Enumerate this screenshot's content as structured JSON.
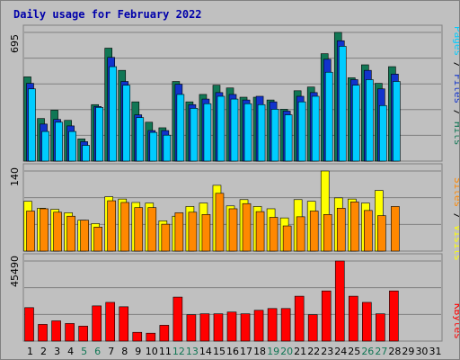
{
  "title": "Daily usage for February 2022",
  "colors": {
    "title": "#0000aa",
    "hits": "#117755",
    "files": "#1133cc",
    "pages": "#00ccff",
    "visits": "#ffff00",
    "sites": "#ff8800",
    "kbytes": "#ff0000",
    "weekend": "#117755",
    "panel": "#c0c0c0",
    "grid": "#808080"
  },
  "chart_data": [
    {
      "type": "bar",
      "panel": "hits",
      "ymax_label": "695",
      "ylim": [
        0,
        695
      ],
      "right_label": [
        {
          "text": "Pages",
          "color": "#00ccff"
        },
        {
          "text": " / ",
          "color": "#000000"
        },
        {
          "text": "Files",
          "color": "#1133cc"
        },
        {
          "text": " / ",
          "color": "#000000"
        },
        {
          "text": "Hits",
          "color": "#117755"
        }
      ],
      "categories": [
        "1",
        "2",
        "3",
        "4",
        "5",
        "6",
        "7",
        "8",
        "9",
        "10",
        "11",
        "12",
        "13",
        "14",
        "15",
        "16",
        "17",
        "18",
        "19",
        "20",
        "21",
        "22",
        "23",
        "24",
        "25",
        "26",
        "27",
        "28",
        "29",
        "30",
        "31"
      ],
      "series": [
        {
          "name": "Hits",
          "values": [
            455,
            230,
            275,
            220,
            120,
            305,
            610,
            490,
            320,
            210,
            180,
            430,
            320,
            360,
            410,
            395,
            345,
            345,
            330,
            280,
            380,
            400,
            580,
            695,
            450,
            520,
            420,
            510,
            null,
            null,
            null
          ]
        },
        {
          "name": "Files",
          "values": [
            420,
            200,
            225,
            190,
            105,
            295,
            560,
            430,
            250,
            165,
            165,
            415,
            305,
            335,
            370,
            360,
            330,
            350,
            320,
            270,
            350,
            370,
            550,
            650,
            440,
            490,
            390,
            470,
            null,
            null,
            null
          ]
        },
        {
          "name": "Pages",
          "values": [
            390,
            160,
            210,
            160,
            85,
            290,
            510,
            410,
            235,
            155,
            140,
            360,
            285,
            310,
            350,
            335,
            310,
            305,
            280,
            250,
            320,
            350,
            480,
            620,
            410,
            440,
            300,
            430,
            null,
            null,
            null
          ]
        }
      ]
    },
    {
      "type": "bar",
      "panel": "visits",
      "ymax_label": "140",
      "ylim": [
        0,
        140
      ],
      "right_label": [
        {
          "text": "Sites",
          "color": "#ff8800"
        },
        {
          "text": " / ",
          "color": "#000000"
        },
        {
          "text": "Visits",
          "color": "#ffff00"
        }
      ],
      "series": [
        {
          "name": "Visits",
          "values": [
            87,
            75,
            73,
            67,
            54,
            48,
            95,
            91,
            85,
            84,
            53,
            61,
            78,
            84,
            115,
            79,
            90,
            78,
            74,
            58,
            90,
            87,
            140,
            93,
            91,
            84,
            106,
            null,
            null,
            null,
            null
          ]
        },
        {
          "name": "Sites",
          "values": [
            70,
            74,
            68,
            61,
            54,
            42,
            88,
            85,
            76,
            76,
            47,
            67,
            68,
            64,
            101,
            74,
            83,
            69,
            59,
            44,
            60,
            70,
            64,
            75,
            86,
            71,
            62,
            78,
            null,
            null,
            null
          ]
        }
      ]
    },
    {
      "type": "bar",
      "panel": "kbytes",
      "ymax_label": "45490",
      "ylim": [
        0,
        45490
      ],
      "right_label": [
        {
          "text": "KBytes",
          "color": "#ff0000"
        }
      ],
      "series": [
        {
          "name": "KBytes",
          "values": [
            19000,
            9500,
            11500,
            10000,
            8500,
            20000,
            22000,
            19500,
            5000,
            4500,
            9000,
            25000,
            15000,
            15500,
            15500,
            16500,
            15500,
            17500,
            18500,
            18500,
            25500,
            15000,
            28500,
            45490,
            25500,
            22000,
            15500,
            28500,
            null,
            null,
            null
          ]
        }
      ]
    }
  ],
  "xaxis": {
    "labels": [
      "1",
      "2",
      "3",
      "4",
      "5",
      "6",
      "7",
      "8",
      "9",
      "10",
      "11",
      "12",
      "13",
      "14",
      "15",
      "16",
      "17",
      "18",
      "19",
      "20",
      "21",
      "22",
      "23",
      "24",
      "25",
      "26",
      "27",
      "28",
      "29",
      "30",
      "31"
    ],
    "weekend": [
      false,
      false,
      false,
      false,
      true,
      true,
      false,
      false,
      false,
      false,
      false,
      true,
      true,
      false,
      false,
      false,
      false,
      false,
      true,
      true,
      false,
      false,
      false,
      false,
      false,
      true,
      true,
      false,
      false,
      false,
      false
    ]
  }
}
